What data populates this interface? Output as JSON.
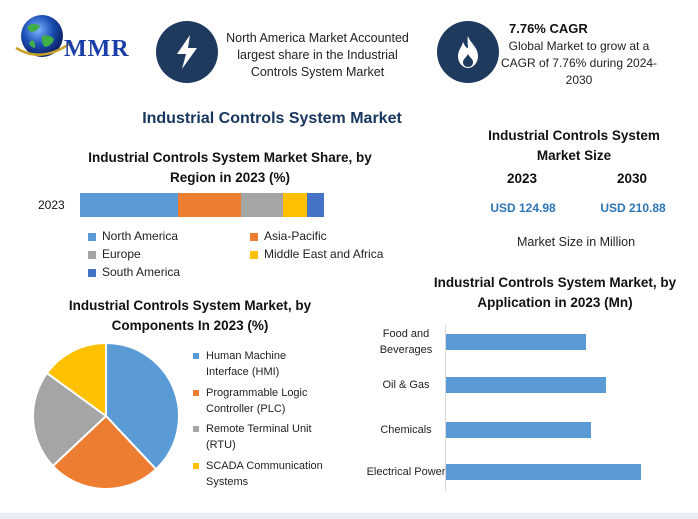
{
  "logo": {
    "text": "MMR"
  },
  "info1": {
    "line1": "North America Market Accounted",
    "line2": "largest share in the Industrial",
    "line3": "Controls System Market"
  },
  "info2": {
    "title": "7.76% CAGR",
    "line1": "Global Market to grow at a",
    "line2": "CAGR of 7.76% during 2024-",
    "line3": "2030"
  },
  "main_title": "Industrial Controls System Market",
  "market_size": {
    "title_line1": "Industrial Controls System",
    "title_line2": "Market Size",
    "year1": "2023",
    "year2": "2030",
    "value1": "USD 124.98",
    "value2": "USD 210.88",
    "note": "Market Size in Million"
  },
  "colors": {
    "blue": "#5b9bd5",
    "orange": "#ed7d31",
    "gray": "#a5a5a5",
    "yellow": "#ffc000",
    "darkblue": "#4472c4",
    "navy": "#1f3a5f",
    "value_blue": "#2e75b6"
  },
  "chart_data": [
    {
      "type": "bar",
      "orientation": "horizontal",
      "stacked": true,
      "title_line1": "Industrial Controls System Market Share, by",
      "title_line2": "Region in 2023 (%)",
      "categories": [
        "2023"
      ],
      "series": [
        {
          "name": "North America",
          "values": [
            40
          ],
          "color": "#5b9bd5"
        },
        {
          "name": "Asia-Pacific",
          "values": [
            26
          ],
          "color": "#ed7d31"
        },
        {
          "name": "Europe",
          "values": [
            17
          ],
          "color": "#a5a5a5"
        },
        {
          "name": "Middle East and Africa",
          "values": [
            10
          ],
          "color": "#ffc000"
        },
        {
          "name": "South America",
          "values": [
            7
          ],
          "color": "#4472c4"
        }
      ],
      "legend": "bottom",
      "grid": false
    },
    {
      "type": "pie",
      "title_line1": "Industrial Controls System Market, by",
      "title_line2": "Components In 2023 (%)",
      "slices": [
        {
          "name_line1": "Human Machine",
          "name_line2": "Interface (HMI)",
          "value": 38,
          "color": "#5b9bd5"
        },
        {
          "name_line1": "Programmable Logic",
          "name_line2": "Controller (PLC)",
          "value": 25,
          "color": "#ed7d31"
        },
        {
          "name_line1": "Remote Terminal Unit",
          "name_line2": "(RTU)",
          "value": 22,
          "color": "#a5a5a5"
        },
        {
          "name_line1": "SCADA Communication",
          "name_line2": "Systems",
          "value": 15,
          "color": "#ffc000"
        }
      ],
      "legend": "right"
    },
    {
      "type": "bar",
      "orientation": "horizontal",
      "title_line1": "Industrial Controls System Market, by",
      "title_line2": "Application in 2023 (Mn)",
      "categories": [
        {
          "line1": "Food and",
          "line2": "Beverages"
        },
        {
          "line1": "Oil & Gas",
          "line2": ""
        },
        {
          "line1": "Chemicals",
          "line2": ""
        },
        {
          "line1": "Electrical Power",
          "line2": ""
        }
      ],
      "values": [
        28,
        32,
        29,
        39
      ],
      "xlim": [
        0,
        45
      ],
      "color": "#5b9bd5",
      "grid": false
    }
  ]
}
